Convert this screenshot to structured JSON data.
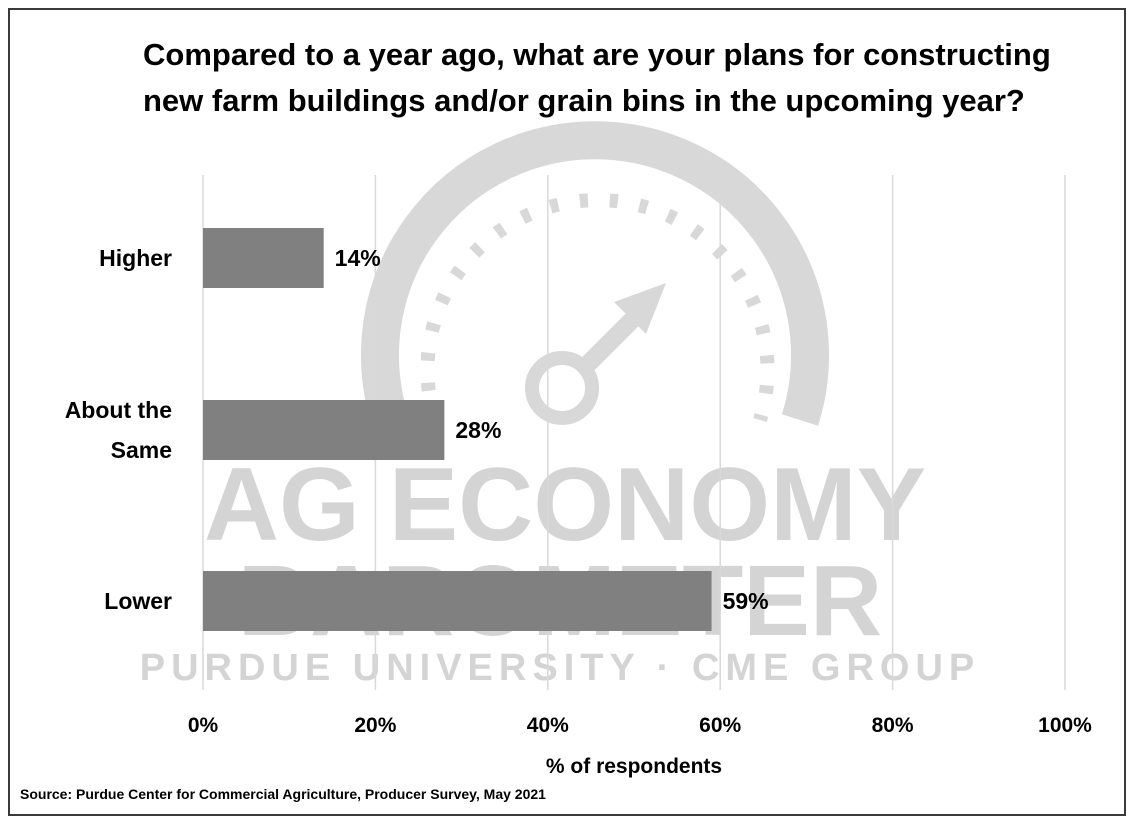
{
  "chart_data": {
    "type": "bar",
    "orientation": "horizontal",
    "title": "Compared to a year ago, what are your plans for constructing new farm buildings and/or grain bins in the upcoming year?",
    "categories": [
      "Higher",
      "About the Same",
      "Lower"
    ],
    "category_lines": [
      [
        "Higher"
      ],
      [
        "About the",
        "Same"
      ],
      [
        "Lower"
      ]
    ],
    "values": [
      14,
      28,
      59
    ],
    "value_labels": [
      "14%",
      "28%",
      "59%"
    ],
    "xlabel": "% of respondents",
    "xlim": [
      0,
      100
    ],
    "x_ticks": [
      "0%",
      "20%",
      "40%",
      "60%",
      "80%",
      "100%"
    ],
    "grid": true,
    "bar_color": "#808080",
    "watermark": {
      "line1": "AG ECONOMY",
      "line2": "BAROMETER",
      "line3": "PURDUE UNIVERSITY  ·  CME GROUP",
      "color": "#d2d2d2"
    }
  },
  "source": "Source: Purdue Center for Commercial Agriculture, Producer Survey, May 2021"
}
